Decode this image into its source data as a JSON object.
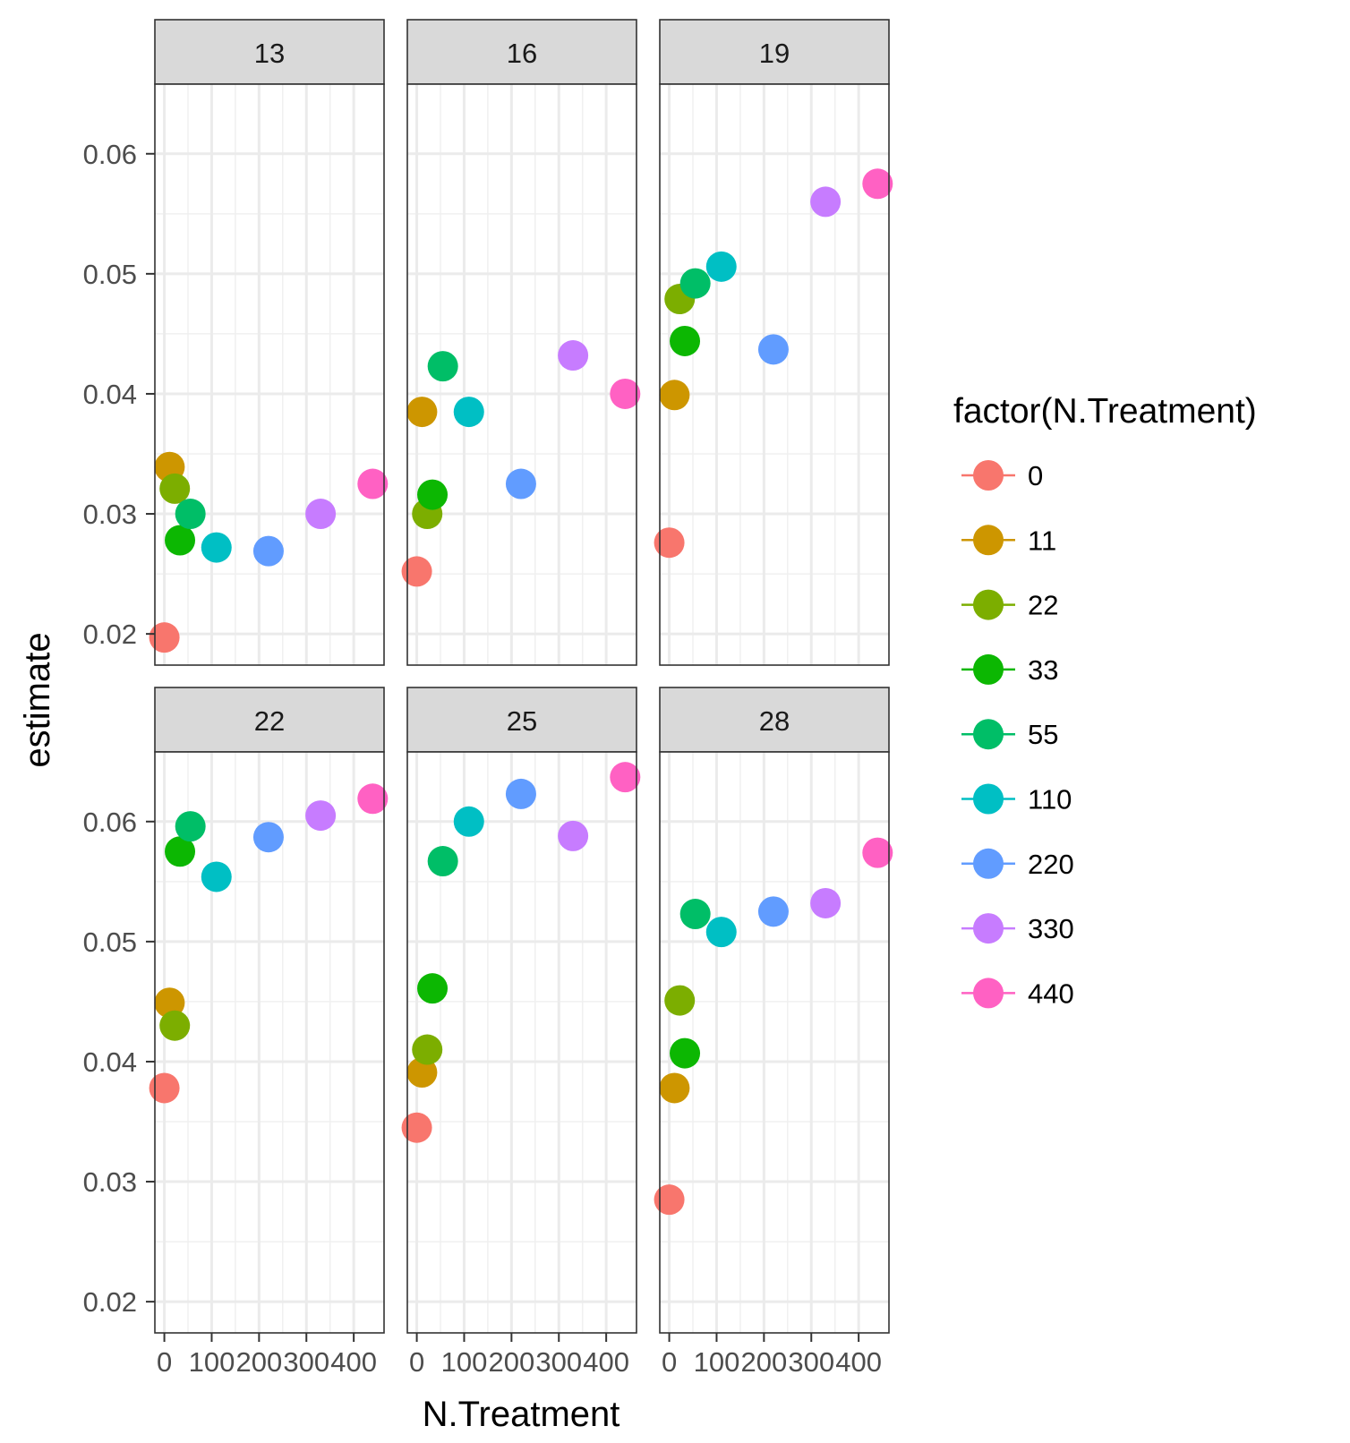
{
  "chart_data": {
    "type": "scatter",
    "layout": "faceted",
    "xlabel": "N.Treatment",
    "ylabel": "estimate",
    "x_ticks": [
      "0",
      "100",
      "200",
      "300",
      "400"
    ],
    "x_tick_values": [
      0,
      100,
      200,
      300,
      400
    ],
    "xlim": [
      -20,
      464
    ],
    "ylim": [
      0.0174,
      0.0658
    ],
    "y_ticks": [
      "0.02",
      "0.03",
      "0.04",
      "0.05",
      "0.06"
    ],
    "y_tick_values": [
      0.02,
      0.03,
      0.04,
      0.05,
      0.06
    ],
    "grid": true,
    "legend": {
      "title": "factor(N.Treatment)",
      "placement": "right",
      "entries": [
        {
          "label": "0",
          "value": 0,
          "color": "#F8766D"
        },
        {
          "label": "11",
          "value": 11,
          "color": "#CD9600"
        },
        {
          "label": "22",
          "value": 22,
          "color": "#7CAE00"
        },
        {
          "label": "33",
          "value": 33,
          "color": "#0CB702"
        },
        {
          "label": "55",
          "value": 55,
          "color": "#00BE67"
        },
        {
          "label": "110",
          "value": 110,
          "color": "#00BFC4"
        },
        {
          "label": "220",
          "value": 220,
          "color": "#619CFF"
        },
        {
          "label": "330",
          "value": 330,
          "color": "#C77CFF"
        },
        {
          "label": "440",
          "value": 440,
          "color": "#FF61C3"
        }
      ]
    },
    "facets": [
      {
        "label": "13",
        "values": [
          0.0197,
          0.0339,
          0.0321,
          0.0278,
          0.03,
          0.0272,
          0.0269,
          0.03,
          0.0325
        ]
      },
      {
        "label": "16",
        "values": [
          0.0252,
          0.0385,
          0.03,
          0.0316,
          0.0423,
          0.0385,
          0.0325,
          0.0432,
          0.04
        ]
      },
      {
        "label": "19",
        "values": [
          0.0276,
          0.0399,
          0.0479,
          0.0444,
          0.0492,
          0.0506,
          0.0437,
          0.056,
          0.0575
        ]
      },
      {
        "label": "22",
        "values": [
          0.0378,
          0.0449,
          0.043,
          0.0575,
          0.0596,
          0.0554,
          0.0587,
          0.0605,
          0.0619
        ]
      },
      {
        "label": "25",
        "values": [
          0.0345,
          0.0391,
          0.041,
          0.0461,
          0.0567,
          0.06,
          0.0623,
          0.0588,
          0.0637
        ]
      },
      {
        "label": "28",
        "values": [
          0.0285,
          0.0378,
          0.0451,
          0.0407,
          0.0523,
          0.0508,
          0.0525,
          0.0532,
          0.0574
        ]
      }
    ]
  }
}
